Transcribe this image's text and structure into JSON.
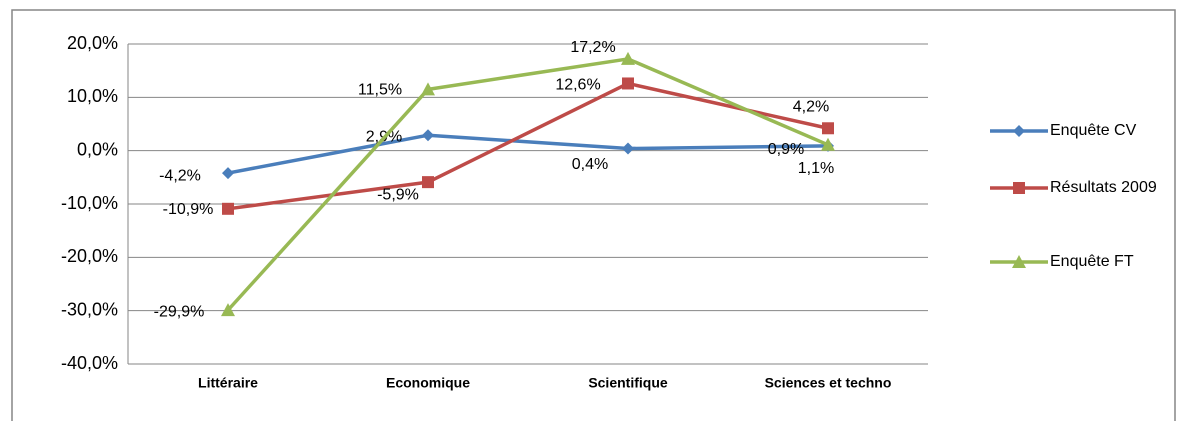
{
  "chart_data": {
    "type": "line",
    "categories": [
      "Littéraire",
      "Economique",
      "Scientifique",
      "Sciences et techno"
    ],
    "series": [
      {
        "name": "Enquête CV",
        "color": "#4a7ebb",
        "marker": "diamond",
        "values": [
          -4.2,
          2.9,
          0.4,
          0.9
        ],
        "value_labels": [
          "-4,2%",
          "2,9%",
          "0,4%",
          "0,9%"
        ]
      },
      {
        "name": "Résultats 2009",
        "color": "#be4b48",
        "marker": "square",
        "values": [
          -10.9,
          -5.9,
          12.6,
          4.2
        ],
        "value_labels": [
          "-10,9%",
          "-5,9%",
          "12,6%",
          "4,2%"
        ]
      },
      {
        "name": "Enquête FT",
        "color": "#98b954",
        "marker": "triangle",
        "values": [
          -29.9,
          11.5,
          17.2,
          1.1
        ],
        "value_labels": [
          "-29,9%",
          "11,5%",
          "17,2%",
          "1,1%"
        ]
      }
    ],
    "ylim": [
      -40,
      20
    ],
    "yticks": [
      {
        "value": -40,
        "label": "-40,0%"
      },
      {
        "value": -30,
        "label": "-30,0%"
      },
      {
        "value": -20,
        "label": "-20,0%"
      },
      {
        "value": -10,
        "label": "-10,0%"
      },
      {
        "value": 0,
        "label": "0,0%"
      },
      {
        "value": 10,
        "label": "10,0%"
      },
      {
        "value": 20,
        "label": "20,0%"
      }
    ],
    "grid": true,
    "legend": "right"
  }
}
